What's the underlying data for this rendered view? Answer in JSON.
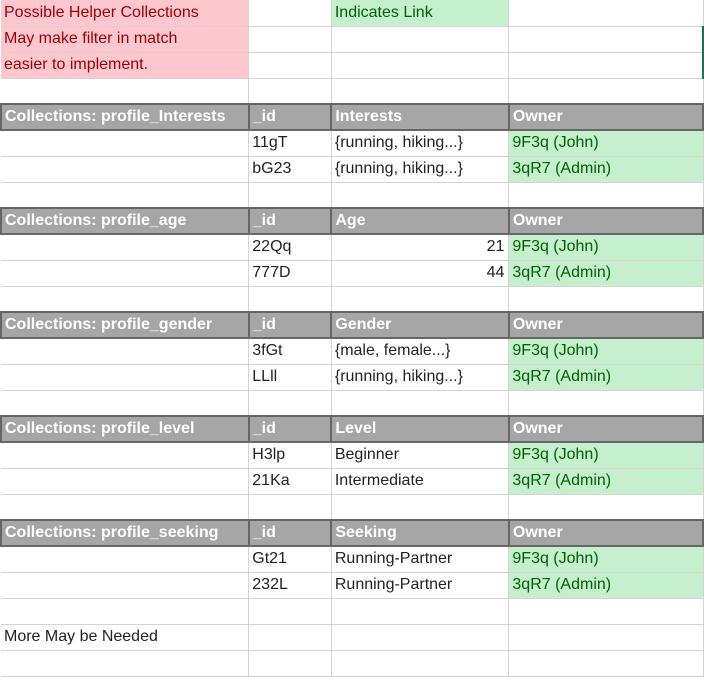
{
  "notes": {
    "helper_lines": [
      "Possible Helper Collections",
      "May make filter in match",
      "easier to implement."
    ],
    "link_legend": "Indicates Link"
  },
  "columns": {
    "id": "_id",
    "owner": "Owner"
  },
  "sections": [
    {
      "title": "Collections: profile_Interests",
      "field": "Interests",
      "rows": [
        {
          "id": "11gT",
          "value": "{running, hiking...}",
          "owner": "9F3q (John)"
        },
        {
          "id": "bG23",
          "value": "{running, hiking...}",
          "owner": "3qR7 (Admin)"
        }
      ]
    },
    {
      "title": "Collections: profile_age",
      "field": "Age",
      "rows": [
        {
          "id": "22Qq",
          "value": "21",
          "owner": "9F3q (John)"
        },
        {
          "id": "777D",
          "value": "44",
          "owner": "3qR7 (Admin)"
        }
      ]
    },
    {
      "title": "Collections: profile_gender",
      "field": "Gender",
      "rows": [
        {
          "id": "3fGt",
          "value": "{male, female...}",
          "owner": "9F3q (John)"
        },
        {
          "id": "LLll",
          "value": "{running, hiking...}",
          "owner": "3qR7 (Admin)"
        }
      ]
    },
    {
      "title": "Collections: profile_level",
      "field": "Level",
      "rows": [
        {
          "id": "H3lp",
          "value": "Beginner",
          "owner": "9F3q (John)"
        },
        {
          "id": "21Ka",
          "value": "Intermediate",
          "owner": "3qR7 (Admin)"
        }
      ]
    },
    {
      "title": "Collections: profile_seeking",
      "field": "Seeking",
      "rows": [
        {
          "id": "Gt21",
          "value": "Running-Partner",
          "owner": "9F3q (John)"
        },
        {
          "id": "232L",
          "value": "Running-Partner",
          "owner": "3qR7 (Admin)"
        }
      ]
    }
  ],
  "footer_note": "More May be Needed",
  "colors": {
    "note_bg": "#ffc7ce",
    "note_text": "#9c0006",
    "link_bg": "#c6efce",
    "link_text": "#006100",
    "header_bg": "#a6a6a6",
    "header_text": "#ffffff"
  }
}
